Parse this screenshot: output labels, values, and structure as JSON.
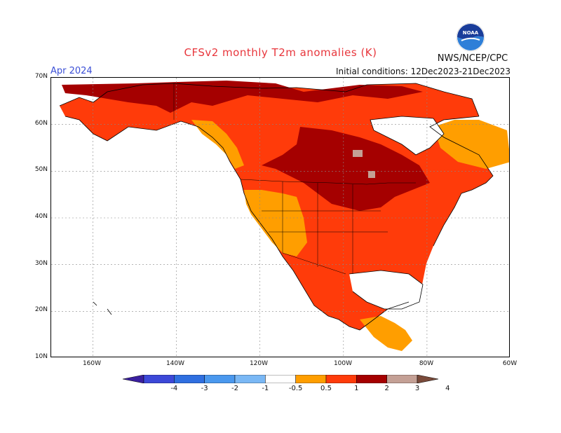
{
  "title": "CFSv2 monthly T2m anomalies (K)",
  "period": "Apr 2024",
  "initial_conditions": "Initial conditions: 12Dec2023-21Dec2023",
  "agency": "NWS/NCEP/CPC",
  "logo_text": "NOAA",
  "lat_ticks": [
    "70N",
    "60N",
    "50N",
    "40N",
    "30N",
    "20N",
    "10N"
  ],
  "lon_ticks": [
    "160W",
    "140W",
    "120W",
    "100W",
    "80W",
    "60W"
  ],
  "legend": {
    "labels": [
      "-4",
      "-3",
      "-2",
      "-1",
      "-0.5",
      "0.5",
      "1",
      "2",
      "3",
      "4"
    ],
    "colors": [
      "#3a1fa0",
      "#3c48d8",
      "#2f6fe0",
      "#4a98ee",
      "#7ab8f5",
      "#ffffff",
      "#ff9e00",
      "#ff3b0a",
      "#a50000",
      "#c4a095",
      "#7a4a3a"
    ]
  },
  "chart_data": {
    "type": "heatmap",
    "title": "CFSv2 monthly T2m anomalies (K)",
    "subtitle": "Apr 2024",
    "lat_range": [
      10,
      70
    ],
    "lon_range": [
      -170,
      -60
    ],
    "lat_ticks": [
      "70N",
      "60N",
      "50N",
      "40N",
      "30N",
      "20N",
      "10N"
    ],
    "lon_ticks": [
      "160W",
      "140W",
      "120W",
      "100W",
      "80W",
      "60W"
    ],
    "units": "K",
    "contour_levels": [
      -4,
      -3,
      -2,
      -1,
      -0.5,
      0.5,
      1,
      2,
      3,
      4
    ],
    "grid": "dotted",
    "regions": [
      {
        "area": "Northern Alaska / Arctic Canada / Hudson Bay interior",
        "anomaly_range": [
          2,
          3
        ]
      },
      {
        "area": "Central Canada prairies / Upper Midwest",
        "anomaly_range": [
          2,
          3
        ]
      },
      {
        "area": "Central and eastern United States",
        "anomaly_range": [
          1,
          2
        ]
      },
      {
        "area": "Southwestern United States / California",
        "anomaly_range": [
          0.5,
          1
        ]
      },
      {
        "area": "Mexico",
        "anomaly_range": [
          1,
          2
        ]
      },
      {
        "area": "Central America",
        "anomaly_range": [
          0.5,
          1
        ]
      },
      {
        "area": "Labrador / Newfoundland",
        "anomaly_range": [
          0.5,
          1
        ]
      },
      {
        "area": "Northwest Canada / British Columbia coast",
        "anomaly_range": [
          0.5,
          1
        ]
      }
    ]
  }
}
